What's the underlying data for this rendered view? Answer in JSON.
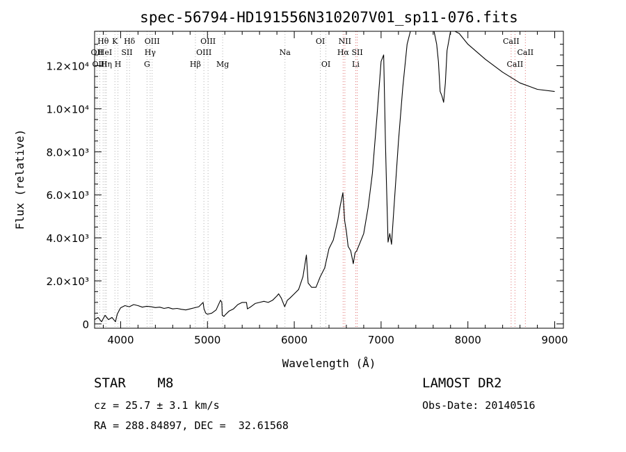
{
  "chart_data": {
    "type": "line",
    "title": "spec-56794-HD191556N310207V01_sp11-076.fits",
    "xlabel": "Wavelength (Å)",
    "ylabel": "Flux (relative)",
    "xlim": [
      3700,
      9100
    ],
    "ylim": [
      -200,
      13600
    ],
    "xticks": [
      4000,
      5000,
      6000,
      7000,
      8000,
      9000
    ],
    "yticks": [
      {
        "value": 0,
        "label": "0"
      },
      {
        "value": 2000,
        "label": "2.0×10³"
      },
      {
        "value": 4000,
        "label": "4.0×10³"
      },
      {
        "value": 6000,
        "label": "6.0×10³"
      },
      {
        "value": 8000,
        "label": "8.0×10³"
      },
      {
        "value": 10000,
        "label": "1.0×10⁴"
      },
      {
        "value": 12000,
        "label": "1.2×10⁴"
      }
    ],
    "series": [
      {
        "color": "#000000",
        "x": [
          3700,
          3740,
          3780,
          3820,
          3860,
          3900,
          3940,
          3960,
          3980,
          4000,
          4050,
          4100,
          4150,
          4200,
          4250,
          4300,
          4350,
          4400,
          4450,
          4500,
          4550,
          4600,
          4650,
          4700,
          4750,
          4800,
          4850,
          4900,
          4950,
          4960,
          4980,
          5000,
          5050,
          5100,
          5150,
          5165,
          5170,
          5190,
          5200,
          5250,
          5300,
          5350,
          5400,
          5450,
          5460,
          5500,
          5550,
          5600,
          5650,
          5700,
          5750,
          5800,
          5820,
          5850,
          5890,
          5920,
          5950,
          6000,
          6050,
          6100,
          6140,
          6160,
          6200,
          6250,
          6300,
          6350,
          6400,
          6450,
          6500,
          6530,
          6560,
          6580,
          6600,
          6620,
          6650,
          6680,
          6700,
          6720,
          6750,
          6800,
          6850,
          6900,
          6950,
          7000,
          7030,
          7050,
          7060,
          7080,
          7100,
          7120,
          7150,
          7200,
          7250,
          7300,
          7350,
          7400,
          7450,
          7500,
          7550,
          7600,
          7640,
          7660,
          7680,
          7700,
          7720,
          7740,
          7760,
          7800,
          7850,
          7900,
          8000,
          8200,
          8400,
          8600,
          8800,
          9000
        ],
        "y": [
          200,
          300,
          100,
          400,
          200,
          300,
          100,
          450,
          600,
          750,
          850,
          800,
          900,
          850,
          780,
          820,
          800,
          760,
          780,
          720,
          760,
          700,
          720,
          680,
          650,
          700,
          750,
          800,
          1000,
          700,
          500,
          450,
          500,
          650,
          1100,
          1000,
          400,
          350,
          400,
          600,
          700,
          900,
          1000,
          1000,
          700,
          800,
          950,
          1000,
          1050,
          1000,
          1100,
          1300,
          1400,
          1200,
          800,
          1100,
          1200,
          1400,
          1600,
          2200,
          3200,
          1900,
          1700,
          1700,
          2200,
          2600,
          3500,
          3900,
          4800,
          5500,
          6100,
          4800,
          4300,
          3600,
          3400,
          2800,
          3300,
          3400,
          3700,
          4200,
          5400,
          7000,
          9500,
          12200,
          12500,
          8500,
          6800,
          3800,
          4200,
          3700,
          5500,
          8500,
          11000,
          13000,
          13800,
          13800,
          13800,
          13800,
          13800,
          13800,
          13000,
          12200,
          10800,
          10600,
          10300,
          11200,
          12700,
          13600,
          13600,
          13500,
          13000,
          12300,
          11700,
          11200,
          10900,
          10800
        ]
      }
    ],
    "spectral_lines": [
      {
        "label": "Hθ",
        "x": 3798,
        "row": 1,
        "color": "#b0b0b0"
      },
      {
        "label": "OII",
        "x": 3727,
        "row": 2,
        "color": "#b0b0b0"
      },
      {
        "label": "OIII",
        "x": 3760,
        "row": 3,
        "color": "#b0b0b0"
      },
      {
        "label": "HeI",
        "x": 3820,
        "row": 2,
        "color": "#b0b0b0"
      },
      {
        "label": "Hη",
        "x": 3835,
        "row": 3,
        "color": "#b0b0b0"
      },
      {
        "label": "K",
        "x": 3934,
        "row": 1,
        "color": "#b0b0b0"
      },
      {
        "label": "SII",
        "x": 4072,
        "row": 2,
        "color": "#b0b0b0"
      },
      {
        "label": "H",
        "x": 3969,
        "row": 3,
        "color": "#b0b0b0"
      },
      {
        "label": "Hδ",
        "x": 4102,
        "row": 1,
        "color": "#b0b0b0"
      },
      {
        "label": "OIII",
        "x": 4363,
        "row": 1,
        "color": "#b0b0b0"
      },
      {
        "label": "Hγ",
        "x": 4340,
        "row": 2,
        "color": "#b0b0b0"
      },
      {
        "label": "G",
        "x": 4304,
        "row": 3,
        "color": "#b0b0b0"
      },
      {
        "label": "OIII",
        "x": 5007,
        "row": 1,
        "color": "#b0b0b0"
      },
      {
        "label": "OIII",
        "x": 4959,
        "row": 2,
        "color": "#b0b0b0"
      },
      {
        "label": "Hβ",
        "x": 4861,
        "row": 3,
        "color": "#b0b0b0"
      },
      {
        "label": "Mg",
        "x": 5175,
        "row": 3,
        "color": "#b0b0b0"
      },
      {
        "label": "Na",
        "x": 5893,
        "row": 2,
        "color": "#b0b0b0"
      },
      {
        "label": "OI",
        "x": 6300,
        "row": 1,
        "color": "#b0b0b0"
      },
      {
        "label": "OI",
        "x": 6364,
        "row": 3,
        "color": "#b0b0b0"
      },
      {
        "label": "NII",
        "x": 6583,
        "row": 1,
        "color": "#e07070"
      },
      {
        "label": "Hα",
        "x": 6563,
        "row": 2,
        "color": "#e07070"
      },
      {
        "label": "SII",
        "x": 6725,
        "row": 2,
        "color": "#e07070"
      },
      {
        "label": "Li",
        "x": 6708,
        "row": 3,
        "color": "#e07070"
      },
      {
        "label": "CaII",
        "x": 8498,
        "row": 1,
        "color": "#e07070"
      },
      {
        "label": "CaII",
        "x": 8662,
        "row": 2,
        "color": "#e07070"
      },
      {
        "label": "CaII",
        "x": 8542,
        "row": 3,
        "color": "#e07070"
      }
    ]
  },
  "info": {
    "star_class": "STAR    M8",
    "survey": "LAMOST DR2",
    "cz": "cz = 25.7 ± 3.1 km/s",
    "obs_date": "Obs-Date: 20140516",
    "radec": "RA = 288.84897, DEC =  32.61568"
  }
}
